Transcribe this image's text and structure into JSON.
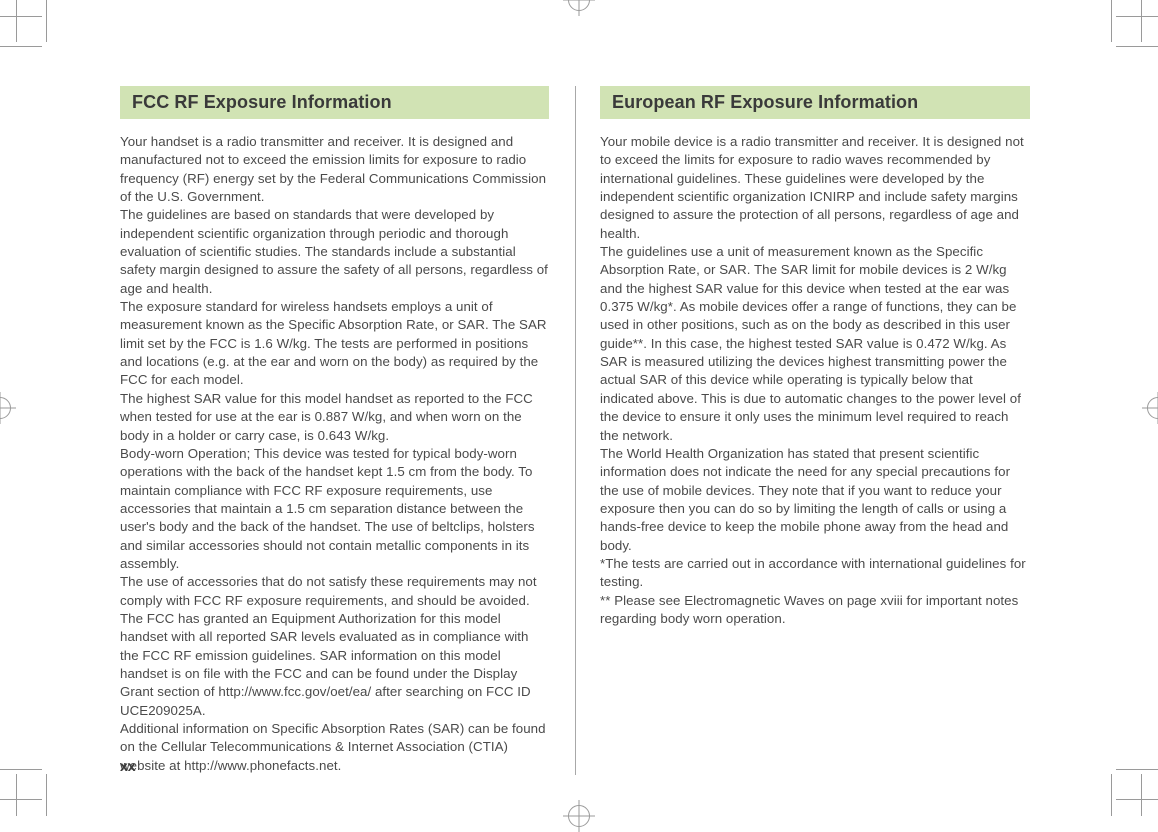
{
  "style": {
    "heading_bg": "#d1e3b4",
    "heading_color": "#3a3a3a",
    "heading_fontsize": 18,
    "heading_fontweight": 700,
    "body_color": "#4a4a4a",
    "body_fontsize": 13.3,
    "body_lineheight": 1.38,
    "page_bg": "#ffffff",
    "divider_color": "#a8a8a8",
    "cropmark_color": "#9a9a9a"
  },
  "page_number": "xx",
  "columns": [
    {
      "heading": "FCC RF Exposure Information",
      "body": "Your handset is a radio transmitter and receiver. It is designed and manufactured not to exceed the emission limits for exposure to radio frequency (RF) energy set by the Federal Communications Commission of the U.S. Government.\nThe guidelines are based on standards that were developed by independent scientific organization through periodic and thorough evaluation of scientific studies. The standards include a substantial safety margin designed to assure the safety of all persons, regardless of age and health.\nThe exposure standard for wireless handsets employs a unit of measurement known as the Specific Absorption Rate, or SAR. The SAR limit set by the FCC is 1.6 W/kg. The tests are performed in positions and locations (e.g. at the ear and worn on the body) as required by the FCC for each model.\nThe highest SAR value for this model handset as reported to the FCC when tested for use at the ear is 0.887 W/kg, and when worn on the body in a holder or carry case, is 0.643 W/kg.\nBody-worn Operation; This device was tested for typical body-worn operations with the back of the handset kept 1.5 cm from the body. To maintain compliance with FCC RF exposure requirements, use accessories that maintain a 1.5 cm separation distance between the user's body and the back of the handset. The use of beltclips, holsters and similar accessories should not contain metallic components in its assembly.\nThe use of accessories that do not satisfy these requirements may not comply with FCC RF exposure requirements, and should be avoided. The FCC has granted an Equipment Authorization for this model handset with all reported SAR levels evaluated as in compliance with the FCC RF emission guidelines. SAR information on this model handset is on file with the FCC and can be found under the Display Grant section of http://www.fcc.gov/oet/ea/ after searching on FCC ID UCE209025A.\nAdditional information on Specific Absorption Rates (SAR) can be found on the Cellular Telecommunications & Internet Association (CTIA) website at http://www.phonefacts.net."
    },
    {
      "heading": "European RF Exposure Information",
      "body": "Your mobile device is a radio transmitter and receiver. It is designed not to exceed the limits for exposure to radio waves recommended by international guidelines. These guidelines were developed by the independent scientific organization ICNIRP and include safety margins designed to assure the protection of all persons, regardless of age and health.\nThe guidelines use a unit of measurement known as the Specific Absorption Rate, or SAR. The SAR limit for mobile devices is 2 W/kg and the highest SAR value for this device when tested at the ear was 0.375 W/kg*. As mobile devices offer a range of functions, they can be used in other positions, such as on the body as described in this user guide**. In this case, the highest tested SAR value is 0.472 W/kg. As SAR is measured utilizing the devices highest transmitting power the actual SAR of this device while operating is typically below that indicated above. This is due to automatic changes to the power level of the device to ensure it only uses the minimum level required to reach the network.\nThe World Health Organization has stated that present scientific information does not indicate the need for any special precautions for the use of mobile devices. They note that if you want to reduce your exposure then you can do so by limiting the length of calls or using a hands-free device to keep the mobile phone away from the head and body.\n*The tests are carried out in accordance with international guidelines for testing.\n** Please see Electromagnetic Waves on page xviii for important notes regarding body worn operation."
    }
  ]
}
